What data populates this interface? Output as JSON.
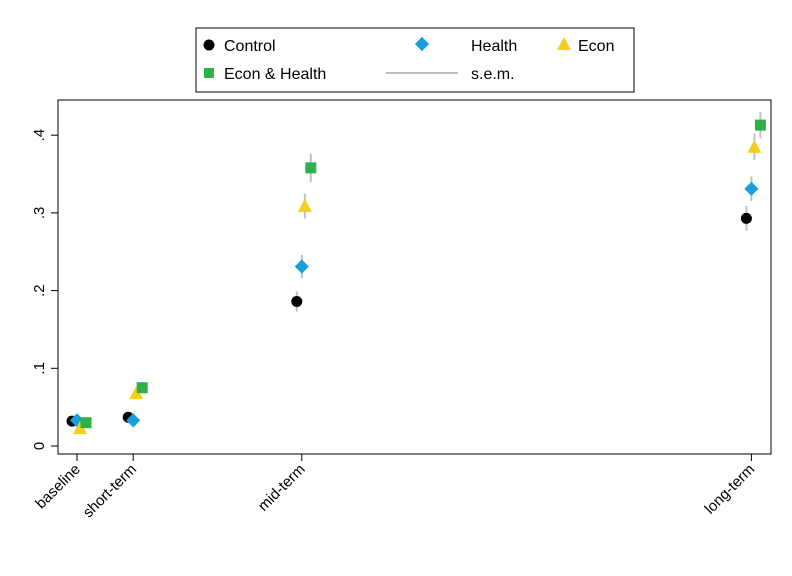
{
  "chart_data": {
    "type": "scatter",
    "title": "",
    "xlabel": "",
    "ylabel": "",
    "categories": [
      "baseline",
      "short-term",
      "mid-term",
      "long-term"
    ],
    "x_positions": [
      0,
      1,
      4,
      12
    ],
    "ylim": [
      0,
      0.43
    ],
    "yticks": [
      0,
      0.1,
      0.2,
      0.3,
      0.4
    ],
    "ytick_labels": [
      "0",
      ".1",
      ".2",
      ".3",
      ".4"
    ],
    "grid": false,
    "legend_position": "top",
    "series": [
      {
        "name": "Control",
        "marker": "circle",
        "color": "#000000",
        "values": [
          0.032,
          0.037,
          0.186,
          0.293
        ],
        "sem": [
          0.002,
          0.003,
          0.013,
          0.016
        ]
      },
      {
        "name": "Health",
        "marker": "diamond",
        "color": "#1a9fdb",
        "values": [
          0.033,
          0.033,
          0.231,
          0.331
        ],
        "sem": [
          0.002,
          0.003,
          0.015,
          0.016
        ]
      },
      {
        "name": "Econ",
        "marker": "triangle",
        "color": "#f6cf1e",
        "values": [
          0.023,
          0.068,
          0.309,
          0.385
        ],
        "sem": [
          0.002,
          0.006,
          0.016,
          0.017
        ]
      },
      {
        "name": "Econ & Health",
        "marker": "square",
        "color": "#2db24a",
        "values": [
          0.03,
          0.075,
          0.358,
          0.413
        ],
        "sem": [
          0.003,
          0.006,
          0.018,
          0.017
        ]
      }
    ],
    "sem_label": "s.e.m.",
    "sem_color": "#c0c0c0"
  }
}
